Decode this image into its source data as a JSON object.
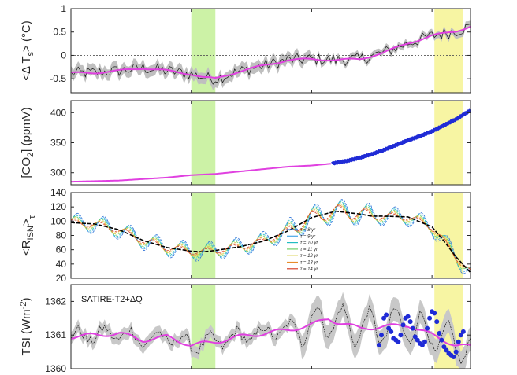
{
  "figure": {
    "title": "",
    "shaded_bands": [
      {
        "name": "green-band",
        "x_range": [
          1900,
          1910
        ],
        "color": "#ccf2a6"
      },
      {
        "name": "yellow-band",
        "x_range": [
          2001,
          2013
        ],
        "color": "#f7f5a3"
      }
    ],
    "x_range": [
      1850,
      2016
    ],
    "x_ticks": [
      1850,
      1900,
      1950,
      2000
    ]
  },
  "chart_data": [
    {
      "id": "temperature",
      "type": "line",
      "ylabel_parts": [
        "<Δ T",
        "s",
        "> (°C)"
      ],
      "ylim": [
        -0.8,
        1.0
      ],
      "yticks": [
        -0.5,
        0,
        0.5,
        1
      ],
      "ytick_labels": [
        "-0.5",
        "0",
        "0.5",
        "1"
      ],
      "zero_line": true,
      "series": [
        {
          "name": "annual",
          "color": "#111111",
          "style": "thin"
        },
        {
          "name": "smoothed",
          "color": "#e040e0",
          "style": "thick"
        },
        {
          "name": "uncertainty",
          "color": "#bfbfbf",
          "style": "band"
        }
      ],
      "smooth_points": {
        "x": [
          1850,
          1860,
          1870,
          1880,
          1890,
          1900,
          1905,
          1910,
          1920,
          1930,
          1940,
          1950,
          1960,
          1970,
          1980,
          1990,
          2000,
          2005,
          2010,
          2016
        ],
        "y": [
          -0.38,
          -0.37,
          -0.33,
          -0.27,
          -0.33,
          -0.4,
          -0.47,
          -0.5,
          -0.34,
          -0.22,
          -0.1,
          -0.08,
          -0.1,
          -0.08,
          0.06,
          0.26,
          0.42,
          0.47,
          0.52,
          0.62
        ]
      }
    },
    {
      "id": "co2",
      "type": "line",
      "ylabel_parts": [
        "[CO",
        "2",
        "] (ppmV)"
      ],
      "ylim": [
        280,
        420
      ],
      "yticks": [
        300,
        350,
        400
      ],
      "ytick_labels": [
        "300",
        "350",
        "400"
      ],
      "series": [
        {
          "name": "ice-core",
          "color": "#e040e0"
        },
        {
          "name": "mauna-loa",
          "color": "#1f2bd6"
        }
      ],
      "points": {
        "x": [
          1850,
          1870,
          1890,
          1900,
          1910,
          1920,
          1930,
          1940,
          1950,
          1958,
          1965,
          1970,
          1975,
          1980,
          1985,
          1990,
          1995,
          2000,
          2005,
          2010,
          2016
        ],
        "y": [
          285,
          287,
          292,
          296,
          298,
          302,
          306,
          310,
          312,
          315,
          320,
          325,
          331,
          338,
          346,
          354,
          361,
          369,
          379,
          389,
          404
        ]
      },
      "measured_start_year": 1958
    },
    {
      "id": "risn",
      "type": "line",
      "ylabel_parts": [
        "<R",
        "ISN",
        ">",
        "τ"
      ],
      "ylim": [
        20,
        140
      ],
      "yticks": [
        20,
        40,
        60,
        80,
        100,
        120,
        140
      ],
      "ytick_labels": [
        "20",
        "40",
        "60",
        "80",
        "100",
        "120",
        "140"
      ],
      "mean_series": {
        "x": [
          1850,
          1860,
          1870,
          1880,
          1890,
          1900,
          1905,
          1910,
          1920,
          1930,
          1940,
          1950,
          1960,
          1970,
          1975,
          1980,
          1990,
          2000,
          2005,
          2010,
          2016
        ],
        "y": [
          98,
          96,
          88,
          73,
          63,
          58,
          57,
          59,
          64,
          72,
          86,
          105,
          114,
          110,
          107,
          107,
          106,
          92,
          72,
          50,
          28
        ]
      },
      "legend": {
        "placement": "center-bottom",
        "entries": [
          {
            "label": "τ = 8 yr",
            "color": "#2b6fd6"
          },
          {
            "label": "τ = 9 yr",
            "color": "#4aa8e8"
          },
          {
            "label": "τ = 10 yr",
            "color": "#22bcc2"
          },
          {
            "label": "τ = 11 yr",
            "color": "#6fcf6a"
          },
          {
            "label": "τ = 12 yr",
            "color": "#d6c93a"
          },
          {
            "label": "τ = 13 yr",
            "color": "#e88c2a"
          },
          {
            "label": "τ = 14 yr",
            "color": "#d6402a"
          }
        ],
        "periods": [
          8,
          9,
          10,
          11,
          12,
          13,
          14
        ]
      }
    },
    {
      "id": "tsi",
      "type": "line",
      "ylabel_parts": [
        "TSI (Wm",
        "-2",
        ")"
      ],
      "ylim": [
        1360,
        1362.5
      ],
      "yticks": [
        1360,
        1361,
        1362
      ],
      "ytick_labels": [
        "1360",
        "1361",
        "1362"
      ],
      "annotation": "SATIRE-T2+ΔQ",
      "smooth_points": {
        "x": [
          1850,
          1860,
          1870,
          1880,
          1890,
          1900,
          1910,
          1920,
          1930,
          1940,
          1950,
          1957,
          1960,
          1970,
          1980,
          1990,
          2000,
          2005,
          2010,
          2016
        ],
        "y": [
          1360.95,
          1361.0,
          1361.05,
          1360.85,
          1360.95,
          1360.7,
          1360.8,
          1360.95,
          1361.05,
          1361.15,
          1361.3,
          1361.5,
          1361.4,
          1361.2,
          1361.25,
          1361.3,
          1361.0,
          1360.85,
          1360.7,
          1360.65
        ]
      },
      "satellite_points": {
        "x": [
          1978,
          1979,
          1980,
          1981,
          1982,
          1983,
          1984,
          1985,
          1986,
          1987,
          1988,
          1989,
          1990,
          1991,
          1992,
          1993,
          1994,
          1995,
          1996,
          1997,
          1998,
          1999,
          2000,
          2001,
          2002,
          2003,
          2004,
          2005,
          2006,
          2007,
          2008,
          2009,
          2010,
          2011,
          2012,
          2013
        ],
        "y": [
          1360.7,
          1361.0,
          1361.5,
          1361.6,
          1361.2,
          1361.1,
          1360.9,
          1360.85,
          1360.8,
          1361.0,
          1361.3,
          1361.5,
          1361.55,
          1361.4,
          1361.2,
          1360.95,
          1360.85,
          1360.75,
          1360.7,
          1360.8,
          1361.2,
          1361.5,
          1361.7,
          1361.65,
          1361.4,
          1361.05,
          1360.85,
          1360.65,
          1360.55,
          1360.45,
          1360.4,
          1360.35,
          1360.5,
          1360.8,
          1361.0,
          1361.1
        ]
      }
    }
  ]
}
